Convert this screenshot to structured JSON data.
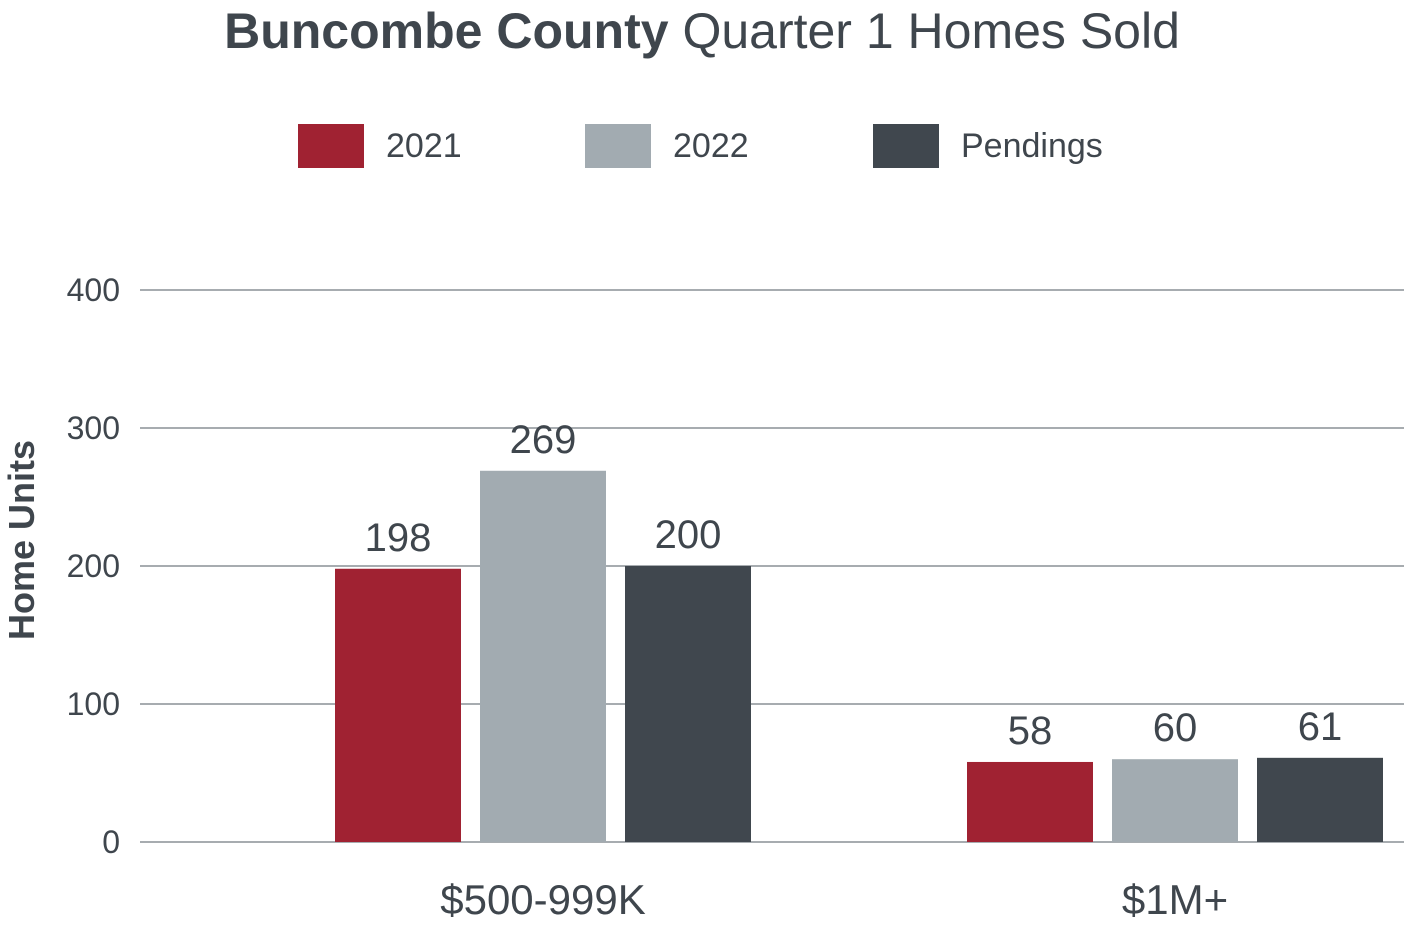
{
  "chart_data": {
    "type": "bar",
    "title_bold": "Buncombe County",
    "title_rest": "Quarter 1 Homes Sold",
    "xlabel": "",
    "ylabel": "Home Units",
    "ylim": [
      0,
      400
    ],
    "yticks": [
      "0",
      "100",
      "200",
      "300",
      "400"
    ],
    "grid": true,
    "legend_position": "top",
    "categories": [
      "$500-999K",
      "$1M+"
    ],
    "series": [
      {
        "name": "2021",
        "color": "#a02232",
        "values": [
          198,
          58
        ]
      },
      {
        "name": "2022",
        "color": "#a2abb1",
        "values": [
          269,
          60
        ]
      },
      {
        "name": "Pendings",
        "color": "#40474e",
        "values": [
          200,
          61
        ]
      }
    ]
  }
}
